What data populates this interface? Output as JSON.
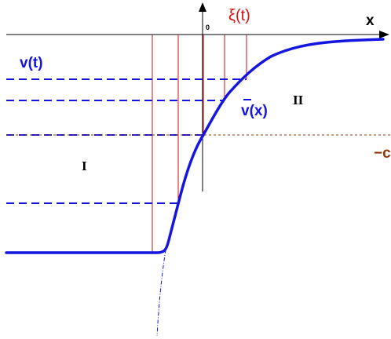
{
  "labels": {
    "v_t": "v(t)",
    "xi_t": "ξ(t)",
    "x_axis": "x",
    "origin": "0",
    "vbar_x": "v(x)",
    "region_I": "I",
    "region_II": "II",
    "minus_c": "−c"
  },
  "colors": {
    "curve": "#1515e0",
    "dashed_levels": "#1515e0",
    "red_verticals": "#d01010",
    "brown_level": "#8b3a0a",
    "axes": "#000000"
  }
}
